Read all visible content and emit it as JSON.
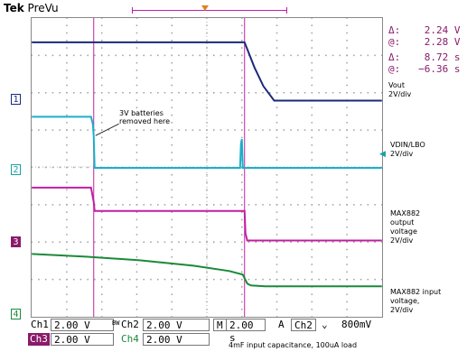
{
  "header": {
    "brand_bold": "Tek",
    "brand_mode": "PreVu"
  },
  "colors": {
    "ch1": "#1a2a7a",
    "ch2": "#1aa0a0",
    "ch3": "#c01fa0",
    "ch4": "#1a8a3a",
    "cursor": "#c01fa0"
  },
  "measure": {
    "rows": [
      {
        "label": "Δ:",
        "value": "2.24 V"
      },
      {
        "label": "@:",
        "value": "2.28 V"
      },
      {
        "label": "Δ:",
        "value": "8.72 s"
      },
      {
        "label": "@:",
        "value": "−6.36 s"
      }
    ]
  },
  "channels": [
    {
      "id": "1",
      "name": "Vout\n2V/div"
    },
    {
      "id": "2",
      "name": "VDIN/LBO\n2V/div"
    },
    {
      "id": "3",
      "name": "MAX882\noutput\nvoltage\n2V/div"
    },
    {
      "id": "4",
      "name": "MAX882 input\nvoltage,\n2V/div"
    }
  ],
  "annotation": "3V batteries\nremoved here",
  "settings": {
    "ch1_label": "Ch1",
    "ch1_scale": "2.00 V",
    "bw_mark": "BW",
    "ch2_label": "Ch2",
    "ch2_scale": "2.00 V",
    "m_label": "M",
    "timebase": "2.00 s",
    "a_label": "A",
    "trig_ch": "Ch2",
    "trig_slope": "⌄",
    "trig_level": "800mV",
    "ch3_label": "Ch3",
    "ch3_scale": "2.00 V",
    "ch4_label": "Ch4",
    "ch4_scale": "2.00 V"
  },
  "caption": "4mF input capacitance, 100uA load"
}
